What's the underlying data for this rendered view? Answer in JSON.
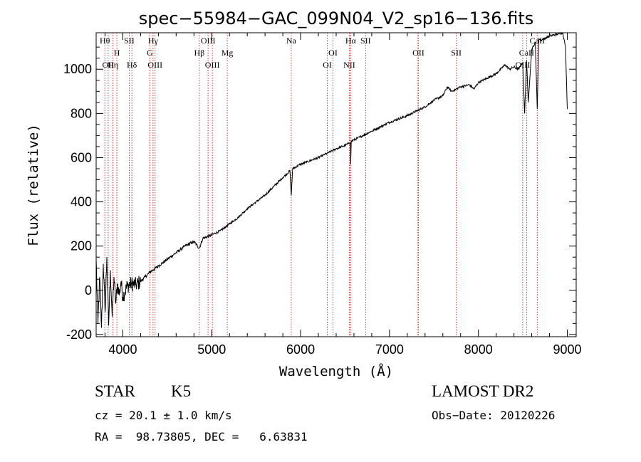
{
  "chart_data": {
    "type": "line",
    "title": "spec−55984−GAC_099N04_V2_sp16−136.fits",
    "xlabel": "Wavelength (Å)",
    "ylabel": "Flux (relative)",
    "xlim": [
      3700,
      9100
    ],
    "ylim": [
      -210,
      1165
    ],
    "x_ticks": [
      4000,
      5000,
      6000,
      7000,
      8000,
      9000
    ],
    "y_ticks": [
      -200,
      0,
      200,
      400,
      600,
      800,
      1000
    ],
    "grid": false,
    "line_color": "#000000",
    "marker_color": "#b22222",
    "series": [
      {
        "x": [
          3700,
          3720,
          3740,
          3760,
          3780,
          3800,
          3820,
          3840,
          3860,
          3880,
          3900,
          3920,
          3940,
          3960,
          3980,
          4000,
          4050,
          4100,
          4150,
          4200,
          4250,
          4300,
          4350,
          4400,
          4450,
          4500,
          4600,
          4700,
          4800,
          4860,
          4900,
          5000,
          5100,
          5200,
          5300,
          5400,
          5500,
          5600,
          5700,
          5800,
          5880,
          5895,
          5910,
          6000,
          6100,
          6200,
          6300,
          6400,
          6500,
          6560,
          6563,
          6570,
          6600,
          6700,
          6800,
          6900,
          7000,
          7100,
          7200,
          7300,
          7400,
          7500,
          7600,
          7650,
          7700,
          7800,
          7900,
          7950,
          8000,
          8100,
          8200,
          8300,
          8350,
          8400,
          8450,
          8498,
          8520,
          8542,
          8560,
          8600,
          8640,
          8662,
          8680,
          8700,
          8800,
          8900,
          8950,
          8980,
          9000
        ],
        "y": [
          140,
          -150,
          60,
          -170,
          120,
          -100,
          150,
          -160,
          90,
          -120,
          60,
          -60,
          30,
          -20,
          40,
          -30,
          20,
          30,
          25,
          40,
          60,
          80,
          95,
          110,
          125,
          140,
          170,
          200,
          220,
          190,
          235,
          250,
          270,
          300,
          330,
          370,
          400,
          430,
          470,
          510,
          540,
          430,
          550,
          570,
          585,
          600,
          620,
          640,
          655,
          670,
          570,
          675,
          680,
          700,
          720,
          740,
          760,
          775,
          790,
          810,
          830,
          860,
          880,
          920,
          900,
          920,
          930,
          910,
          940,
          960,
          980,
          1020,
          1000,
          1010,
          1000,
          1030,
          800,
          1040,
          850,
          1090,
          1120,
          820,
          1140,
          1130,
          1150,
          1160,
          1165,
          1100,
          820
        ]
      }
    ],
    "line_markers": [
      {
        "x": 3798,
        "row": 1,
        "label": "Hθ"
      },
      {
        "x": 3835,
        "row": 3,
        "label": "OII"
      },
      {
        "x": 3889,
        "row": 3,
        "label": "Hη"
      },
      {
        "x": 3933,
        "row": 2,
        "label": "H"
      },
      {
        "x": 4072,
        "row": 1,
        "label": "SII"
      },
      {
        "x": 4102,
        "row": 3,
        "label": "Hδ"
      },
      {
        "x": 4304,
        "row": 2,
        "label": "G"
      },
      {
        "x": 4340,
        "row": 1,
        "label": "Hγ"
      },
      {
        "x": 4363,
        "row": 3,
        "label": "OIII"
      },
      {
        "x": 4861,
        "row": 2,
        "label": "Hβ"
      },
      {
        "x": 4959,
        "row": 1,
        "label": "OIII"
      },
      {
        "x": 5007,
        "row": 3,
        "label": "OIII"
      },
      {
        "x": 5175,
        "row": 2,
        "label": "Mg"
      },
      {
        "x": 5894,
        "row": 1,
        "label": "Na"
      },
      {
        "x": 6300,
        "row": 3,
        "label": "OI"
      },
      {
        "x": 6364,
        "row": 2,
        "label": "OI"
      },
      {
        "x": 6548,
        "row": 3,
        "label": "NII"
      },
      {
        "x": 6563,
        "row": 1,
        "label": "Hα"
      },
      {
        "x": 6731,
        "row": 1,
        "label": "SII"
      },
      {
        "x": 7325,
        "row": 2,
        "label": "OII"
      },
      {
        "x": 7320,
        "row": 2,
        "label": ""
      },
      {
        "x": 7751,
        "row": 2,
        "label": "SII"
      },
      {
        "x": 8498,
        "row": 3,
        "label": "OIII"
      },
      {
        "x": 8542,
        "row": 2,
        "label": "CaII"
      },
      {
        "x": 8662,
        "row": 1,
        "label": "CaII"
      }
    ]
  },
  "info": {
    "class": "STAR",
    "subclass": "K5",
    "survey": "LAMOST DR2",
    "cz": "cz = 20.1 ± 1.0 km/s",
    "obs_date": "Obs−Date: 20120226",
    "radec": "RA =  98.73805, DEC =   6.63831"
  }
}
